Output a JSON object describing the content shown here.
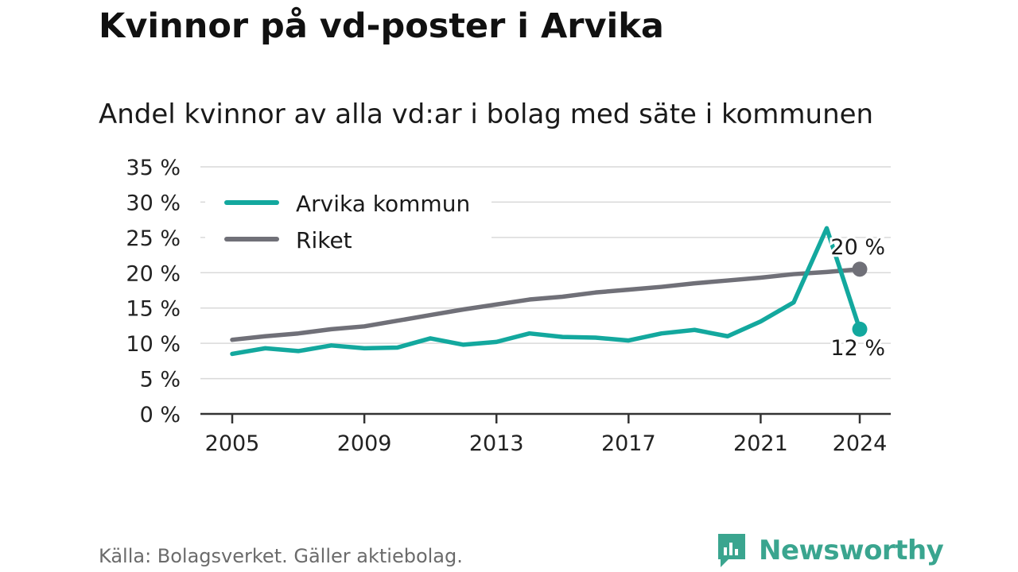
{
  "header": {
    "title": "Kvinnor på vd-poster i Arvika",
    "subtitle": "Andel kvinnor av alla vd:ar i bolag med säte i kommunen"
  },
  "footer": {
    "source": "Källa: Bolagsverket. Gäller aktiebolag.",
    "brand": "Newsworthy"
  },
  "colors": {
    "arvika": "#13a89e",
    "riket": "#707078",
    "grid": "#d9d9d9",
    "axis": "#333333",
    "brand": "#3aa58f"
  },
  "icons": [
    "newsworthy-logo-icon"
  ],
  "chart_data": {
    "type": "line",
    "title": "Kvinnor på vd-poster i Arvika",
    "subtitle": "Andel kvinnor av alla vd:ar i bolag med säte i kommunen",
    "xlabel": "",
    "ylabel": "",
    "x": [
      2005,
      2006,
      2007,
      2008,
      2009,
      2010,
      2011,
      2012,
      2013,
      2014,
      2015,
      2016,
      2017,
      2018,
      2019,
      2020,
      2021,
      2022,
      2023,
      2024
    ],
    "x_ticks": [
      "2005",
      "2009",
      "2013",
      "2017",
      "2021",
      "2024"
    ],
    "y_ticks": [
      "0 %",
      "5 %",
      "10 %",
      "15 %",
      "20 %",
      "25 %",
      "30 %",
      "35 %"
    ],
    "ylim": [
      0,
      35
    ],
    "grid": true,
    "legend_position": "top-left",
    "series": [
      {
        "name": "Arvika kommun",
        "color": "#13a89e",
        "values": [
          8.5,
          9.3,
          8.9,
          9.7,
          9.3,
          9.4,
          10.7,
          9.8,
          10.2,
          11.4,
          10.9,
          10.8,
          10.4,
          11.4,
          11.9,
          11.0,
          13.1,
          15.8,
          26.3,
          12.0
        ],
        "end_label": "12 %"
      },
      {
        "name": "Riket",
        "color": "#707078",
        "values": [
          10.5,
          11.0,
          11.4,
          12.0,
          12.4,
          13.2,
          14.0,
          14.8,
          15.5,
          16.2,
          16.6,
          17.2,
          17.6,
          18.0,
          18.5,
          18.9,
          19.3,
          19.8,
          20.1,
          20.5
        ],
        "end_label": "20 %"
      }
    ]
  }
}
